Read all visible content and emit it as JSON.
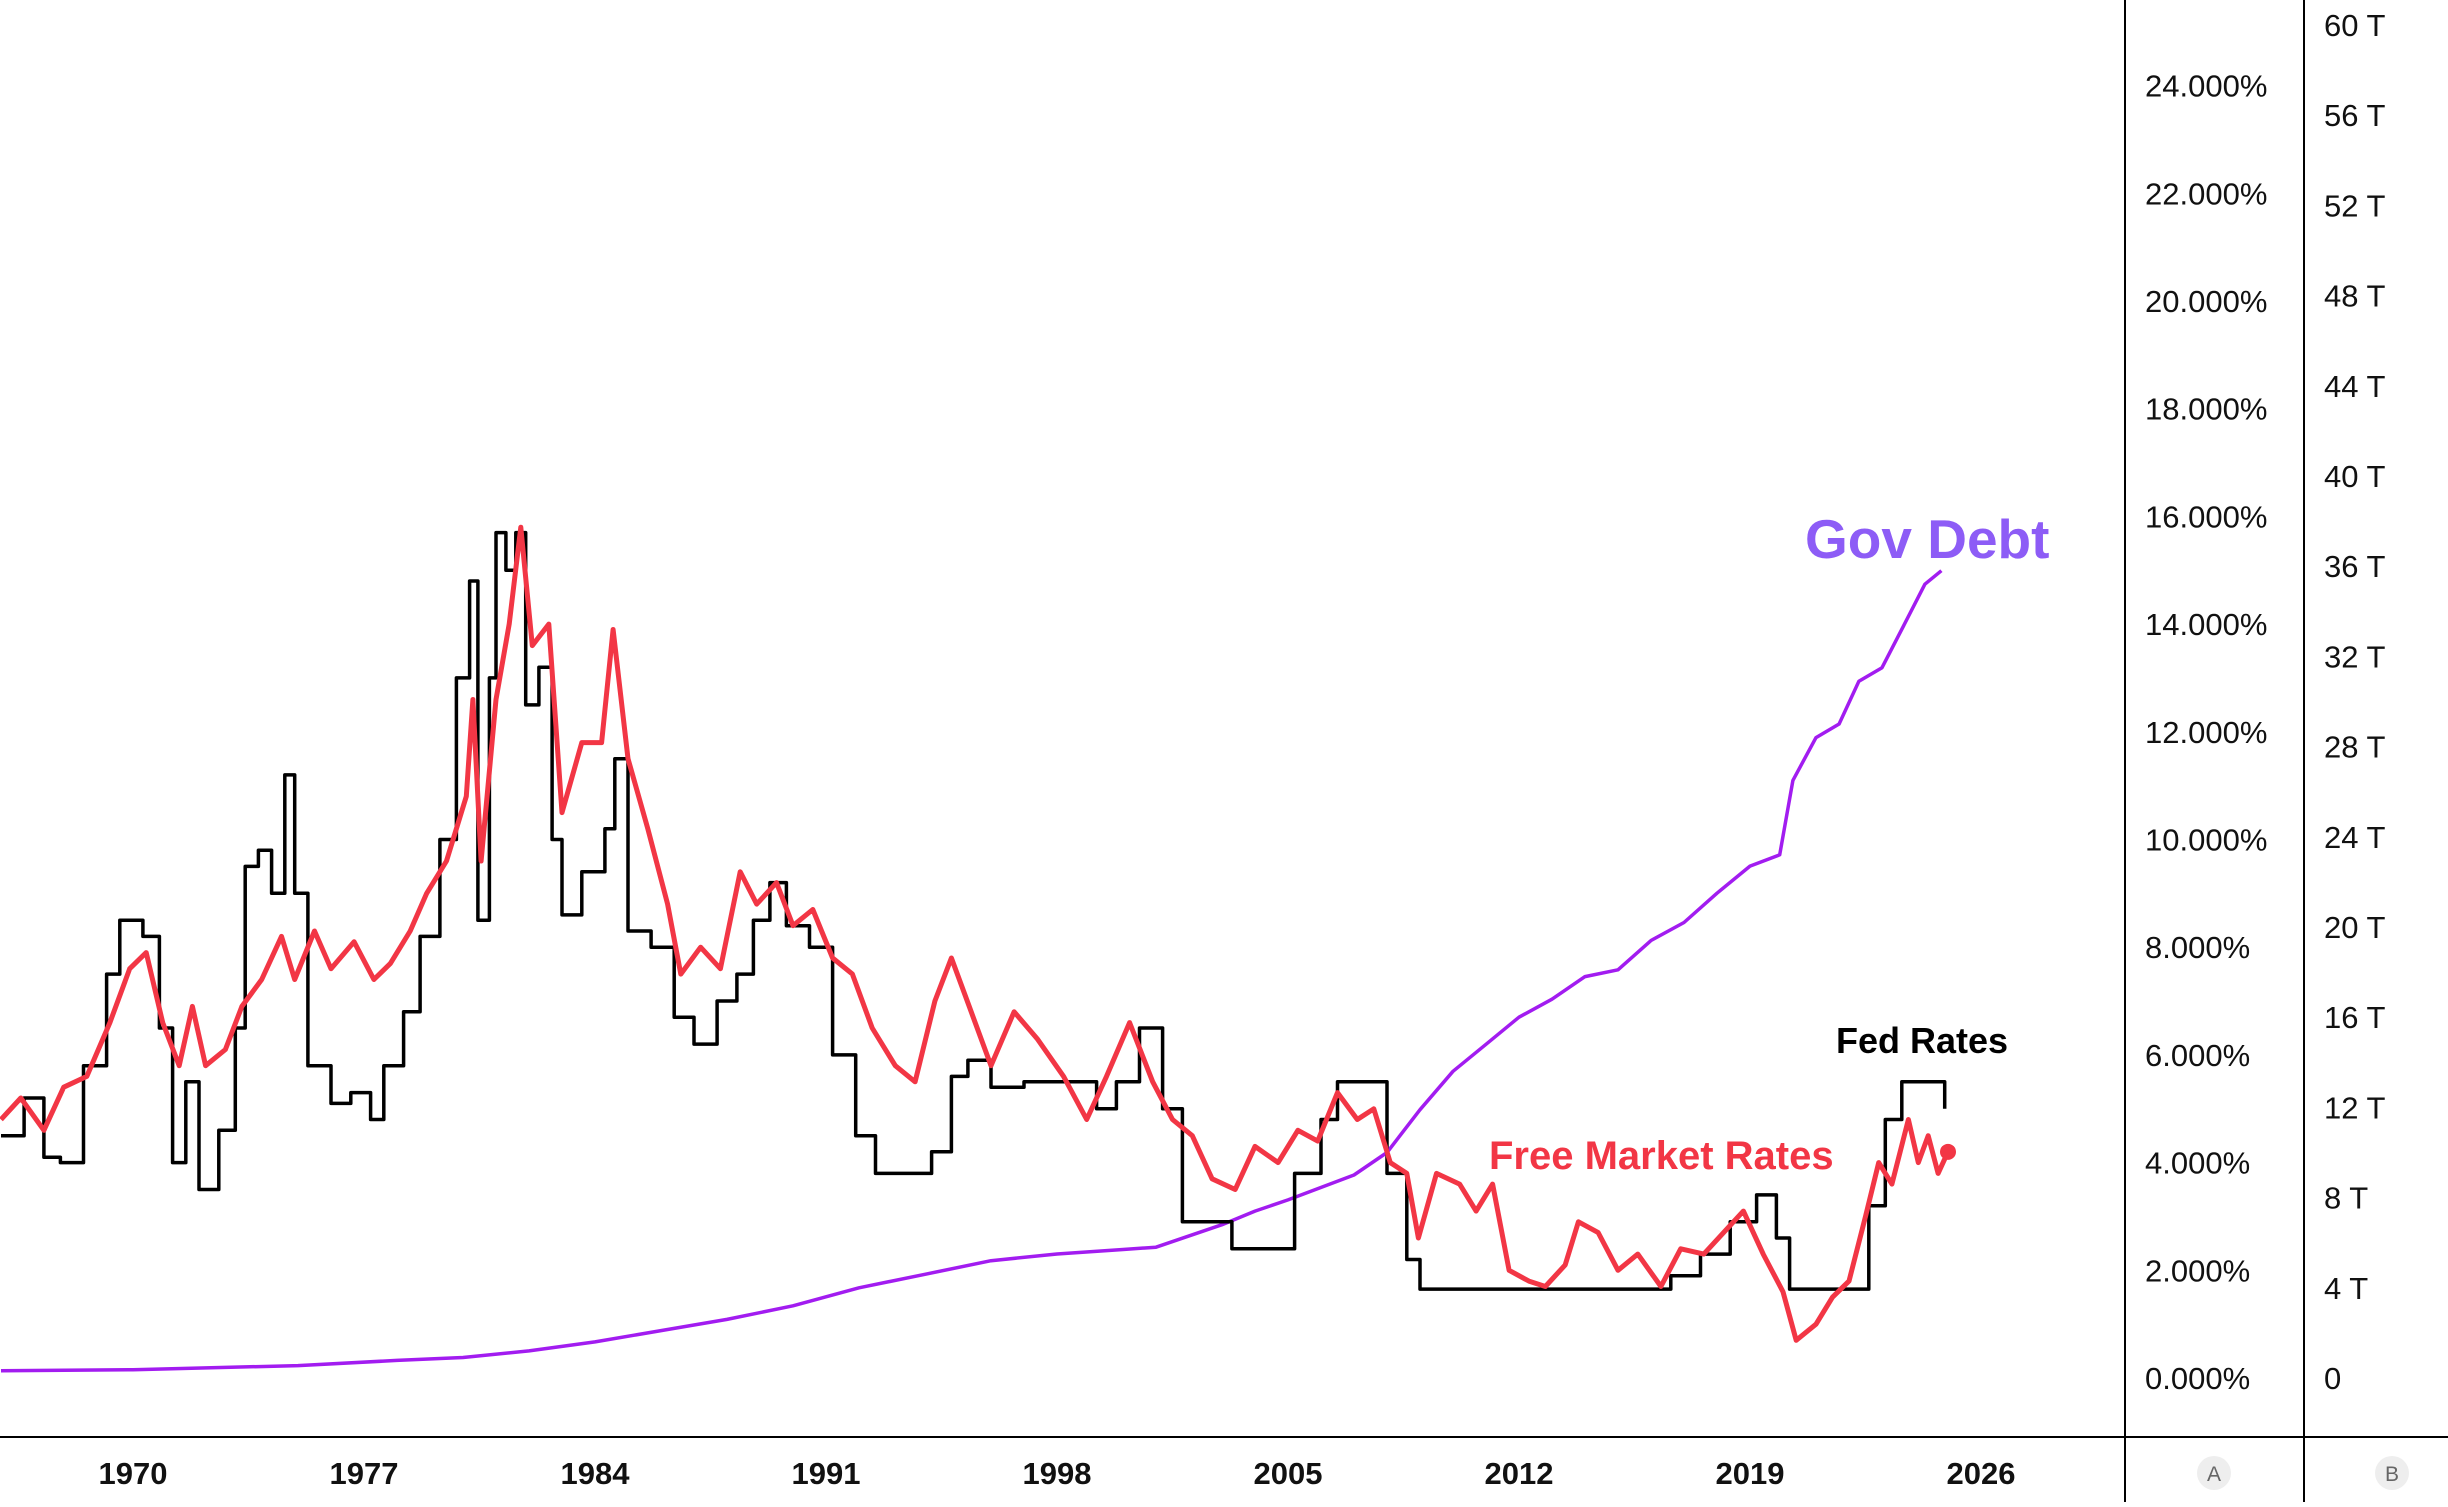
{
  "chart_data": {
    "type": "line",
    "x_axis": {
      "ticks": [
        "1970",
        "1977",
        "1984",
        "1991",
        "1998",
        "2005",
        "2012",
        "2019",
        "2026"
      ],
      "range": [
        1966,
        2030.3
      ]
    },
    "axis_a": {
      "label": "A",
      "ticks": [
        "0.000%",
        "2.000%",
        "4.000%",
        "6.000%",
        "8.000%",
        "10.000%",
        "12.000%",
        "14.000%",
        "16.000%",
        "18.000%",
        "20.000%",
        "22.000%",
        "24.000%"
      ],
      "range": [
        0,
        25.6
      ]
    },
    "axis_b": {
      "label": "B",
      "ticks": [
        "0",
        "4 T",
        "8 T",
        "12 T",
        "16 T",
        "20 T",
        "24 T",
        "28 T",
        "32 T",
        "36 T",
        "40 T",
        "44 T",
        "48 T",
        "52 T",
        "56 T",
        "60 T"
      ],
      "range": [
        0,
        61
      ]
    },
    "annotations": {
      "gov_debt": "Gov Debt",
      "fed_rates": "Fed Rates",
      "free_market": "Free Market Rates"
    },
    "colors": {
      "gov_debt": "#a21cf0",
      "gov_debt_label": "#8d5cf6",
      "fed": "#000000",
      "free": "#f23645"
    },
    "series": [
      {
        "name": "Fed Rates",
        "axis": "A",
        "points": [
          [
            1966,
            4.5
          ],
          [
            1966.7,
            5.2
          ],
          [
            1967.3,
            4.1
          ],
          [
            1967.8,
            4.0
          ],
          [
            1968.5,
            5.8
          ],
          [
            1969.2,
            7.5
          ],
          [
            1969.6,
            8.5
          ],
          [
            1970.3,
            8.2
          ],
          [
            1970.8,
            6.5
          ],
          [
            1971.2,
            4.0
          ],
          [
            1971.6,
            5.5
          ],
          [
            1972.0,
            3.5
          ],
          [
            1972.6,
            4.6
          ],
          [
            1973.1,
            6.5
          ],
          [
            1973.4,
            9.5
          ],
          [
            1973.8,
            9.8
          ],
          [
            1974.2,
            9.0
          ],
          [
            1974.6,
            11.2
          ],
          [
            1974.9,
            9.0
          ],
          [
            1975.3,
            5.8
          ],
          [
            1976,
            5.1
          ],
          [
            1976.6,
            5.3
          ],
          [
            1977.2,
            4.8
          ],
          [
            1977.6,
            5.8
          ],
          [
            1978.2,
            6.8
          ],
          [
            1978.7,
            8.2
          ],
          [
            1979.3,
            10.0
          ],
          [
            1979.8,
            13.0
          ],
          [
            1980.2,
            14.8
          ],
          [
            1980.45,
            8.5
          ],
          [
            1980.8,
            13.0
          ],
          [
            1981.0,
            15.7
          ],
          [
            1981.3,
            15.0
          ],
          [
            1981.6,
            15.7
          ],
          [
            1981.9,
            12.5
          ],
          [
            1982.3,
            13.2
          ],
          [
            1982.7,
            10.0
          ],
          [
            1983.0,
            8.6
          ],
          [
            1983.6,
            9.4
          ],
          [
            1984.3,
            10.2
          ],
          [
            1984.6,
            11.5
          ],
          [
            1985.0,
            8.3
          ],
          [
            1985.7,
            8.0
          ],
          [
            1986.4,
            6.7
          ],
          [
            1987,
            6.2
          ],
          [
            1987.7,
            7.0
          ],
          [
            1988.3,
            7.5
          ],
          [
            1988.8,
            8.5
          ],
          [
            1989.3,
            9.2
          ],
          [
            1989.8,
            8.4
          ],
          [
            1990.5,
            8.0
          ],
          [
            1991.2,
            6.0
          ],
          [
            1991.9,
            4.5
          ],
          [
            1992.5,
            3.8
          ],
          [
            1993.5,
            3.8
          ],
          [
            1994.2,
            4.2
          ],
          [
            1994.8,
            5.6
          ],
          [
            1995.3,
            5.9
          ],
          [
            1996,
            5.4
          ],
          [
            1997,
            5.5
          ],
          [
            1998.5,
            5.5
          ],
          [
            1999.2,
            5.0
          ],
          [
            1999.8,
            5.5
          ],
          [
            2000.5,
            6.5
          ],
          [
            2001.2,
            5.0
          ],
          [
            2001.8,
            2.9
          ],
          [
            2002.5,
            2.9
          ],
          [
            2003.3,
            2.4
          ],
          [
            2004.4,
            2.4
          ],
          [
            2005.2,
            3.8
          ],
          [
            2006.0,
            4.8
          ],
          [
            2006.5,
            5.5
          ],
          [
            2007.6,
            5.5
          ],
          [
            2008.0,
            3.8
          ],
          [
            2008.6,
            2.2
          ],
          [
            2009.0,
            1.65
          ],
          [
            2015.8,
            1.65
          ],
          [
            2016.6,
            1.9
          ],
          [
            2017.5,
            2.3
          ],
          [
            2018.4,
            2.9
          ],
          [
            2019.2,
            3.4
          ],
          [
            2019.8,
            2.6
          ],
          [
            2020.2,
            1.65
          ],
          [
            2022.1,
            1.65
          ],
          [
            2022.6,
            3.2
          ],
          [
            2023.1,
            4.8
          ],
          [
            2023.6,
            5.5
          ],
          [
            2024.7,
            5.5
          ],
          [
            2024.9,
            5.0
          ]
        ]
      },
      {
        "name": "Free Market Rates",
        "axis": "A",
        "points": [
          [
            1966,
            4.8
          ],
          [
            1966.6,
            5.2
          ],
          [
            1967.3,
            4.6
          ],
          [
            1967.9,
            5.4
          ],
          [
            1968.6,
            5.6
          ],
          [
            1969.3,
            6.6
          ],
          [
            1969.9,
            7.6
          ],
          [
            1970.4,
            7.9
          ],
          [
            1970.9,
            6.6
          ],
          [
            1971.4,
            5.8
          ],
          [
            1971.8,
            6.9
          ],
          [
            1972.2,
            5.8
          ],
          [
            1972.8,
            6.1
          ],
          [
            1973.3,
            6.9
          ],
          [
            1973.9,
            7.4
          ],
          [
            1974.5,
            8.2
          ],
          [
            1974.9,
            7.4
          ],
          [
            1975.5,
            8.3
          ],
          [
            1976,
            7.6
          ],
          [
            1976.7,
            8.1
          ],
          [
            1977.3,
            7.4
          ],
          [
            1977.8,
            7.7
          ],
          [
            1978.4,
            8.3
          ],
          [
            1978.9,
            9.0
          ],
          [
            1979.5,
            9.6
          ],
          [
            1980.1,
            10.8
          ],
          [
            1980.3,
            12.6
          ],
          [
            1980.55,
            9.6
          ],
          [
            1981.0,
            12.6
          ],
          [
            1981.4,
            14.0
          ],
          [
            1981.75,
            15.8
          ],
          [
            1982.1,
            13.6
          ],
          [
            1982.6,
            14.0
          ],
          [
            1983.0,
            10.5
          ],
          [
            1983.6,
            11.8
          ],
          [
            1984.2,
            11.8
          ],
          [
            1984.55,
            13.9
          ],
          [
            1985.0,
            11.5
          ],
          [
            1985.6,
            10.2
          ],
          [
            1986.2,
            8.8
          ],
          [
            1986.6,
            7.5
          ],
          [
            1987.2,
            8.0
          ],
          [
            1987.8,
            7.6
          ],
          [
            1988.4,
            9.4
          ],
          [
            1988.9,
            8.8
          ],
          [
            1989.5,
            9.2
          ],
          [
            1990.0,
            8.4
          ],
          [
            1990.6,
            8.7
          ],
          [
            1991.2,
            7.8
          ],
          [
            1991.8,
            7.5
          ],
          [
            1992.4,
            6.5
          ],
          [
            1993.1,
            5.8
          ],
          [
            1993.7,
            5.5
          ],
          [
            1994.3,
            7.0
          ],
          [
            1994.8,
            7.8
          ],
          [
            1995.4,
            6.8
          ],
          [
            1996.0,
            5.8
          ],
          [
            1996.7,
            6.8
          ],
          [
            1997.4,
            6.3
          ],
          [
            1998.2,
            5.6
          ],
          [
            1998.9,
            4.8
          ],
          [
            1999.5,
            5.6
          ],
          [
            2000.2,
            6.6
          ],
          [
            2000.9,
            5.5
          ],
          [
            2001.5,
            4.8
          ],
          [
            2002.1,
            4.5
          ],
          [
            2002.7,
            3.7
          ],
          [
            2003.4,
            3.5
          ],
          [
            2004.0,
            4.3
          ],
          [
            2004.7,
            4.0
          ],
          [
            2005.3,
            4.6
          ],
          [
            2005.9,
            4.4
          ],
          [
            2006.5,
            5.3
          ],
          [
            2007.1,
            4.8
          ],
          [
            2007.6,
            5.0
          ],
          [
            2008.1,
            4.0
          ],
          [
            2008.6,
            3.8
          ],
          [
            2008.95,
            2.6
          ],
          [
            2009.5,
            3.8
          ],
          [
            2010.2,
            3.6
          ],
          [
            2010.7,
            3.1
          ],
          [
            2011.2,
            3.6
          ],
          [
            2011.7,
            2.0
          ],
          [
            2012.3,
            1.8
          ],
          [
            2012.8,
            1.7
          ],
          [
            2013.4,
            2.1
          ],
          [
            2013.8,
            2.9
          ],
          [
            2014.4,
            2.7
          ],
          [
            2015.0,
            2.0
          ],
          [
            2015.6,
            2.3
          ],
          [
            2016.3,
            1.7
          ],
          [
            2016.9,
            2.4
          ],
          [
            2017.6,
            2.3
          ],
          [
            2018.2,
            2.7
          ],
          [
            2018.8,
            3.1
          ],
          [
            2019.4,
            2.3
          ],
          [
            2020.0,
            1.6
          ],
          [
            2020.4,
            0.7
          ],
          [
            2021.0,
            1.0
          ],
          [
            2021.5,
            1.5
          ],
          [
            2022.0,
            1.8
          ],
          [
            2022.5,
            3.0
          ],
          [
            2022.9,
            4.0
          ],
          [
            2023.3,
            3.6
          ],
          [
            2023.8,
            4.8
          ],
          [
            2024.1,
            4.0
          ],
          [
            2024.4,
            4.5
          ],
          [
            2024.7,
            3.8
          ],
          [
            2025.0,
            4.2
          ]
        ]
      },
      {
        "name": "Gov Debt",
        "axis": "B",
        "points": [
          [
            1966,
            0.32
          ],
          [
            1970,
            0.37
          ],
          [
            1975,
            0.55
          ],
          [
            1978,
            0.78
          ],
          [
            1980,
            0.91
          ],
          [
            1982,
            1.2
          ],
          [
            1984,
            1.6
          ],
          [
            1986,
            2.1
          ],
          [
            1988,
            2.6
          ],
          [
            1990,
            3.2
          ],
          [
            1992,
            4.0
          ],
          [
            1994,
            4.6
          ],
          [
            1996,
            5.2
          ],
          [
            1998,
            5.5
          ],
          [
            2000,
            5.7
          ],
          [
            2001,
            5.8
          ],
          [
            2003,
            6.8
          ],
          [
            2004,
            7.4
          ],
          [
            2005,
            7.9
          ],
          [
            2007,
            9.0
          ],
          [
            2008,
            10.0
          ],
          [
            2009,
            11.9
          ],
          [
            2010,
            13.6
          ],
          [
            2011,
            14.8
          ],
          [
            2012,
            16.0
          ],
          [
            2013,
            16.8
          ],
          [
            2014,
            17.8
          ],
          [
            2015,
            18.1
          ],
          [
            2016,
            19.4
          ],
          [
            2017,
            20.2
          ],
          [
            2018,
            21.5
          ],
          [
            2019,
            22.7
          ],
          [
            2019.9,
            23.2
          ],
          [
            2020.3,
            26.5
          ],
          [
            2021,
            28.4
          ],
          [
            2021.7,
            29.0
          ],
          [
            2022.3,
            30.9
          ],
          [
            2023.0,
            31.5
          ],
          [
            2023.6,
            33.2
          ],
          [
            2024.3,
            35.2
          ],
          [
            2024.8,
            35.8
          ]
        ]
      }
    ]
  }
}
